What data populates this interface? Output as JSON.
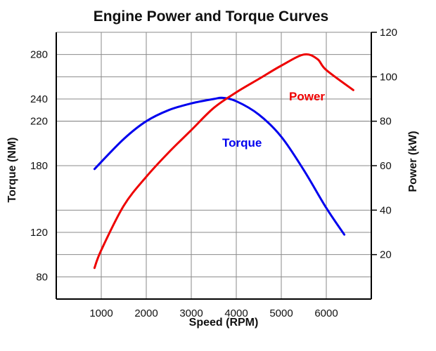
{
  "chart_data": {
    "type": "line",
    "title": "Engine Power and Torque Curves",
    "xlabel": "Speed (RPM)",
    "ylabel": "Torque (NM)",
    "y2label": "Power (kW)",
    "xlim": [
      0,
      7000
    ],
    "ylim": [
      60,
      300
    ],
    "y2lim": [
      0,
      120
    ],
    "x_ticks": [
      1000,
      2000,
      3000,
      4000,
      5000,
      6000
    ],
    "x_tick_labels": [
      "1000",
      "2000",
      "3000",
      "4000",
      "5000",
      "6000"
    ],
    "y_tick_labels": [
      {
        "value": 80,
        "label": "80"
      },
      {
        "value": 120,
        "label": "120"
      },
      {
        "value": 180,
        "label": "180"
      },
      {
        "value": 220,
        "label": "220"
      },
      {
        "value": 240,
        "label": "240"
      },
      {
        "value": 280,
        "label": "280"
      }
    ],
    "y2_ticks": [
      20,
      40,
      60,
      80,
      100,
      120
    ],
    "y2_tick_labels": [
      "20",
      "40",
      "60",
      "80",
      "100",
      "120"
    ],
    "grid": true,
    "series": [
      {
        "name": "Torque",
        "axis": "left",
        "color": "#0000ee",
        "x": [
          850,
          1500,
          2000,
          2500,
          3000,
          3500,
          3700,
          4000,
          4500,
          5000,
          5500,
          6000,
          6400
        ],
        "y": [
          177,
          204,
          220,
          230,
          236,
          240,
          241,
          238,
          226,
          206,
          176,
          142,
          118
        ]
      },
      {
        "name": "Power",
        "axis": "right",
        "color": "#ee0000",
        "x": [
          850,
          1000,
          1500,
          2000,
          2500,
          3000,
          3500,
          4000,
          4500,
          5000,
          5500,
          5800,
          6000,
          6600
        ],
        "y": [
          14,
          22,
          42,
          55,
          66,
          76,
          86,
          93,
          99,
          105,
          110,
          108,
          103,
          94
        ]
      }
    ]
  }
}
